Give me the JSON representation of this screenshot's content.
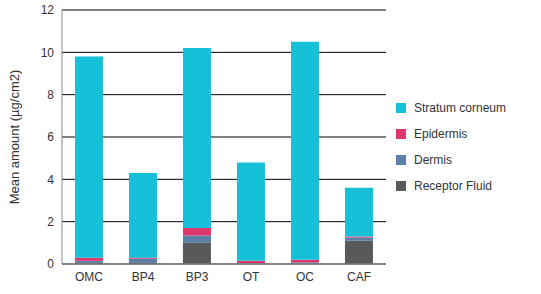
{
  "chart_data": {
    "type": "bar",
    "stacked": true,
    "y_label": "Mean amount (µg/cm2)",
    "categories": [
      "OMC",
      "BP4",
      "BP3",
      "OT",
      "OC",
      "CAF"
    ],
    "series": [
      {
        "name": "Receptor Fluid",
        "color": "#595959",
        "values": [
          0.05,
          0.05,
          1.0,
          0.02,
          0.03,
          1.1
        ]
      },
      {
        "name": "Dermis",
        "color": "#5b7fa6",
        "values": [
          0.1,
          0.2,
          0.35,
          0.03,
          0.05,
          0.15
        ]
      },
      {
        "name": "Epidermis",
        "color": "#e0366e",
        "values": [
          0.15,
          0.05,
          0.35,
          0.1,
          0.12,
          0.05
        ]
      },
      {
        "name": "Stratum corneum",
        "color": "#17c0d9",
        "values": [
          9.5,
          4.0,
          8.5,
          4.65,
          10.3,
          2.3
        ]
      }
    ],
    "ylim": [
      0,
      12
    ],
    "yticks": [
      0,
      2,
      4,
      6,
      8,
      10,
      12
    ],
    "grid": true,
    "legend": "right"
  }
}
